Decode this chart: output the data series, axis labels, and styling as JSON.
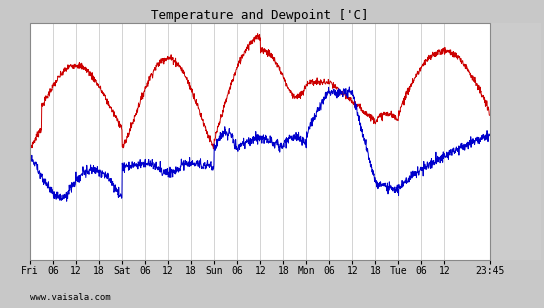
{
  "title": "Temperature and Dewpoint ['C]",
  "ylim": [
    -17,
    17
  ],
  "yticks": [
    -15,
    -10,
    -5,
    0,
    5,
    10,
    15
  ],
  "bg_color": "#ffffff",
  "plot_bg": "#ffffff",
  "right_bg": "#cccccc",
  "grid_color": "#cccccc",
  "temp_color": "#cc0000",
  "dewp_color": "#0000cc",
  "watermark": "www.vaisala.com",
  "xtick_labels": [
    "Fri",
    "06",
    "12",
    "18",
    "Sat",
    "06",
    "12",
    "18",
    "Sun",
    "06",
    "12",
    "18",
    "Mon",
    "06",
    "12",
    "18",
    "Tue",
    "06",
    "12",
    "23:45"
  ],
  "xtick_positions": [
    0,
    6,
    12,
    18,
    24,
    30,
    36,
    42,
    48,
    54,
    60,
    66,
    72,
    78,
    84,
    90,
    96,
    102,
    108,
    119.75
  ],
  "xmin": 0,
  "xmax": 119.75,
  "n_points": 1440
}
